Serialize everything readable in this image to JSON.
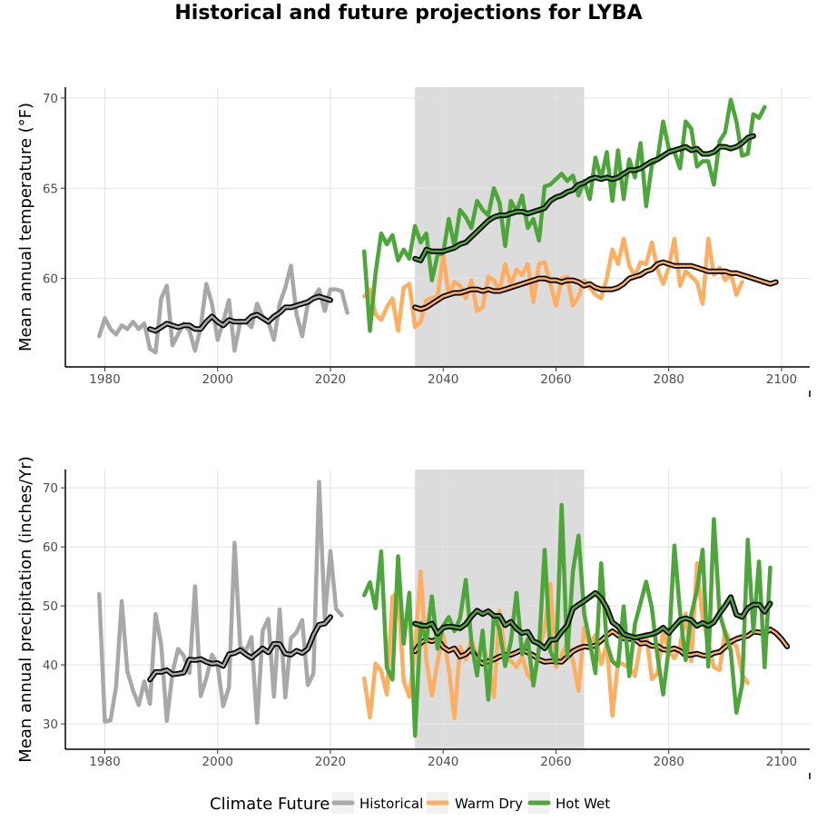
{
  "title": "Historical and future projections for LYBA",
  "legend": {
    "title": "Climate Future",
    "items": [
      {
        "label": "Historical",
        "color": "#a8a8a8"
      },
      {
        "label": "Warm Dry",
        "color": "#fdae61"
      },
      {
        "label": "Hot Wet",
        "color": "#4da63a"
      }
    ]
  },
  "chart_data": [
    {
      "type": "line",
      "ylabel": "Mean annual temperature (°F)",
      "xlim": [
        1973,
        2105
      ],
      "ylim": [
        55.1,
        70.6
      ],
      "xticks": [
        1980,
        2000,
        2020,
        2040,
        2060,
        2080,
        2100
      ],
      "yticks": [
        60,
        65,
        70
      ],
      "grid": true,
      "shaded_period": [
        2035,
        2065
      ],
      "series": [
        {
          "name": "Historical",
          "color": "#a8a8a8",
          "x_start": 1979,
          "values": [
            56.8,
            57.8,
            57.2,
            56.9,
            57.4,
            57.2,
            57.6,
            57.2,
            57.5,
            56.1,
            55.9,
            58.9,
            59.6,
            56.3,
            56.9,
            57.5,
            57.1,
            56.0,
            57.3,
            59.7,
            58.6,
            56.6,
            57.6,
            58.8,
            56.0,
            57.6,
            57.6,
            57.3,
            58.6,
            57.9,
            57.6,
            56.6,
            58.6,
            59.5,
            60.7,
            58.0,
            56.8,
            58.6,
            58.9,
            59.4,
            58.2,
            59.4,
            59.4,
            59.3,
            58.1
          ]
        },
        {
          "name": "Historical",
          "color": "#000000",
          "smooth": true,
          "x_start": 1988,
          "values": [
            57.2,
            57.1,
            57.3,
            57.5,
            57.4,
            57.3,
            57.4,
            57.4,
            57.2,
            57.2,
            57.6,
            57.9,
            57.6,
            57.4,
            57.7,
            57.6,
            57.6,
            57.6,
            57.9,
            58.0,
            57.8,
            57.6,
            57.9,
            58.1,
            58.4,
            58.4,
            58.5,
            58.6,
            58.7,
            58.9,
            59.0,
            58.9,
            58.8
          ]
        },
        {
          "name": "Warm Dry",
          "color": "#fdae61",
          "x_start": 2026,
          "values": [
            59.0,
            59.4,
            58.0,
            57.7,
            58.4,
            58.9,
            57.1,
            59.5,
            59.7,
            57.3,
            57.6,
            58.8,
            58.9,
            59.0,
            61.3,
            59.1,
            59.8,
            59.6,
            58.9,
            59.9,
            58.2,
            58.4,
            60.1,
            59.9,
            59.3,
            60.8,
            59.6,
            60.5,
            60.2,
            60.8,
            58.7,
            60.8,
            60.9,
            59.7,
            58.5,
            60.0,
            60.1,
            58.5,
            59.0,
            59.9,
            59.5,
            59.1,
            58.9,
            60.0,
            61.6,
            60.8,
            62.2,
            60.7,
            60.1,
            60.9,
            60.8,
            62.0,
            60.5,
            59.7,
            60.6,
            62.2,
            59.6,
            60.4,
            60.1,
            59.8,
            58.6,
            62.2,
            60.2,
            60.6,
            59.9,
            60.3,
            59.1,
            59.8
          ]
        },
        {
          "name": "Warm Dry",
          "color": "#000000",
          "smooth": true,
          "x_start": 2035,
          "values": [
            58.4,
            58.3,
            58.4,
            58.6,
            58.8,
            59.0,
            59.1,
            59.2,
            59.2,
            59.3,
            59.4,
            59.4,
            59.3,
            59.4,
            59.3,
            59.3,
            59.4,
            59.5,
            59.6,
            59.7,
            59.8,
            59.9,
            60.0,
            60.0,
            59.9,
            59.9,
            59.8,
            59.9,
            59.9,
            59.8,
            59.6,
            59.7,
            59.5,
            59.4,
            59.4,
            59.4,
            59.5,
            59.7,
            60.0,
            60.1,
            60.2,
            60.4,
            60.5,
            60.8,
            60.9,
            60.8,
            60.7,
            60.7,
            60.7,
            60.7,
            60.6,
            60.5,
            60.4,
            60.4,
            60.4,
            60.4,
            60.3,
            60.3,
            60.2,
            60.1,
            60.0,
            59.9,
            59.8,
            59.7,
            59.8
          ]
        },
        {
          "name": "Hot Wet",
          "color": "#4da63a",
          "x_start": 2026,
          "values": [
            61.5,
            57.1,
            60.3,
            62.5,
            61.9,
            62.4,
            61.0,
            61.6,
            61.1,
            62.9,
            62.0,
            62.5,
            59.9,
            61.3,
            61.4,
            63.3,
            61.8,
            63.8,
            63.4,
            62.8,
            64.3,
            63.8,
            63.5,
            65.0,
            64.2,
            61.8,
            64.3,
            63.7,
            64.6,
            62.8,
            63.3,
            62.1,
            65.1,
            65.2,
            65.5,
            65.8,
            65.4,
            65.7,
            64.6,
            65.4,
            64.4,
            66.7,
            65.5,
            67.0,
            64.3,
            67.1,
            64.4,
            66.6,
            65.6,
            67.5,
            64.0,
            66.3,
            66.6,
            68.7,
            67.2,
            67.0,
            66.1,
            68.7,
            68.3,
            66.2,
            66.5,
            66.5,
            65.2,
            67.6,
            68.1,
            69.9,
            68.7,
            66.8,
            66.9,
            69.1,
            68.9,
            69.5
          ]
        },
        {
          "name": "Hot Wet",
          "color": "#000000",
          "smooth": true,
          "x_start": 2035,
          "values": [
            61.1,
            61.0,
            61.6,
            61.5,
            61.5,
            61.5,
            61.6,
            61.7,
            61.9,
            62.0,
            62.3,
            62.6,
            62.9,
            63.2,
            63.4,
            63.5,
            63.5,
            63.6,
            63.7,
            63.7,
            63.6,
            63.7,
            63.8,
            63.9,
            64.3,
            64.5,
            64.6,
            64.8,
            64.9,
            65.2,
            65.3,
            65.5,
            65.6,
            65.5,
            65.6,
            65.5,
            65.6,
            65.8,
            66.0,
            66.0,
            66.1,
            66.3,
            66.5,
            66.6,
            66.8,
            67.0,
            67.1,
            67.2,
            67.3,
            67.1,
            67.2,
            66.9,
            66.9,
            67.0,
            67.3,
            67.3,
            67.2,
            67.3,
            67.5,
            67.8,
            67.9
          ]
        }
      ]
    },
    {
      "type": "line",
      "ylabel": "Mean annual precipitation (inches/Yr)",
      "xlim": [
        1973,
        2105
      ],
      "ylim": [
        25.7,
        73.1
      ],
      "xticks": [
        1980,
        2000,
        2020,
        2040,
        2060,
        2080,
        2100
      ],
      "yticks": [
        30,
        40,
        50,
        60,
        70
      ],
      "grid": true,
      "shaded_period": [
        2035,
        2065
      ],
      "series": [
        {
          "name": "Historical",
          "color": "#a8a8a8",
          "x_start": 1979,
          "values": [
            52.0,
            30.4,
            30.6,
            36.3,
            50.8,
            38.9,
            35.7,
            33.2,
            37.2,
            33.4,
            48.6,
            43.4,
            30.5,
            38.7,
            42.7,
            41.5,
            38.6,
            53.3,
            34.7,
            37.7,
            41.7,
            40.0,
            33.0,
            36.2,
            60.7,
            43.2,
            42.3,
            44.7,
            30.2,
            45.8,
            47.8,
            34.6,
            49.4,
            34.5,
            44.5,
            45.5,
            47.6,
            36.6,
            38.5,
            71.0,
            47.8,
            59.3,
            49.5,
            48.4
          ]
        },
        {
          "name": "Historical",
          "color": "#000000",
          "smooth": true,
          "x_start": 1988,
          "values": [
            37.5,
            38.8,
            38.8,
            39.1,
            38.4,
            38.5,
            38.7,
            40.9,
            40.8,
            41.0,
            40.5,
            40.2,
            40.3,
            39.8,
            41.8,
            42.0,
            42.5,
            41.8,
            41.2,
            42.0,
            42.8,
            42.1,
            43.6,
            43.5,
            41.9,
            41.7,
            42.4,
            42.0,
            42.7,
            45.1,
            46.8,
            47.0,
            48.1
          ]
        },
        {
          "name": "Warm Dry",
          "color": "#fdae61",
          "x_start": 2026,
          "values": [
            37.7,
            31.1,
            40.2,
            39.0,
            35.0,
            51.5,
            52.5,
            37.2,
            34.6,
            43.0,
            55.8,
            40.8,
            34.8,
            40.5,
            45.1,
            39.4,
            31.0,
            43.1,
            40.9,
            44.3,
            41.1,
            43.5,
            40.3,
            34.6,
            49.1,
            41.6,
            40.7,
            39.6,
            41.4,
            38.3,
            37.2,
            42.4,
            46.2,
            53.7,
            39.6,
            41.6,
            43.9,
            40.7,
            35.6,
            46.3,
            43.1,
            45.1,
            40.1,
            43.7,
            31.4,
            40.6,
            40.0,
            39.6,
            38.1,
            43.7,
            45.2,
            37.6,
            38.5,
            45.9,
            42.4,
            41.1,
            43.2,
            48.7,
            40.6,
            57.2,
            47.7,
            43.8,
            39.6,
            39.1,
            45.8,
            43.8,
            43.2,
            38.4,
            36.9
          ]
        },
        {
          "name": "Warm Dry",
          "color": "#000000",
          "smooth": true,
          "x_start": 2035,
          "values": [
            42.3,
            43.7,
            44.3,
            44.0,
            44.4,
            43.0,
            42.4,
            42.8,
            41.4,
            41.8,
            42.7,
            40.9,
            40.2,
            40.6,
            40.9,
            41.4,
            41.7,
            41.7,
            42.1,
            42.6,
            42.1,
            41.6,
            40.9,
            40.5,
            40.6,
            40.6,
            40.5,
            41.4,
            42.3,
            42.8,
            43.1,
            43.0,
            43.3,
            44.1,
            45.0,
            45.7,
            45.0,
            44.5,
            44.4,
            44.3,
            43.6,
            43.7,
            43.2,
            43.2,
            42.6,
            42.5,
            42.8,
            42.4,
            41.6,
            41.7,
            41.9,
            41.6,
            41.5,
            42.0,
            42.2,
            43.0,
            43.9,
            44.4,
            44.7,
            44.9,
            45.6,
            45.5,
            45.3,
            46.0,
            45.4,
            44.4,
            43.1
          ]
        },
        {
          "name": "Hot Wet",
          "color": "#4da63a",
          "x_start": 2026,
          "values": [
            51.8,
            54.0,
            49.6,
            59.2,
            39.5,
            37.5,
            58.4,
            43.6,
            52.2,
            28.0,
            47.1,
            44.0,
            51.6,
            42.7,
            46.6,
            48.1,
            45.7,
            47.9,
            54.4,
            43.9,
            38.2,
            45.8,
            34.1,
            48.5,
            45.9,
            39.8,
            44.0,
            52.2,
            41.8,
            44.4,
            36.5,
            42.9,
            59.5,
            42.3,
            40.3,
            67.1,
            41.4,
            55.8,
            61.9,
            48.7,
            43.9,
            38.6,
            57.2,
            43.6,
            40.6,
            39.8,
            49.9,
            38.1,
            46.9,
            50.5,
            54.1,
            49.6,
            41.5,
            35.0,
            42.8,
            60.2,
            49.0,
            40.8,
            48.5,
            52.7,
            59.5,
            39.7,
            64.7,
            48.8,
            45.4,
            42.4,
            31.9,
            36.6,
            61.2,
            45.6,
            57.5,
            39.6,
            56.5
          ]
        },
        {
          "name": "Hot Wet",
          "color": "#000000",
          "smooth": true,
          "x_start": 2035,
          "values": [
            47.0,
            46.7,
            46.6,
            47.0,
            45.3,
            46.3,
            46.5,
            46.4,
            46.2,
            46.9,
            48.2,
            49.2,
            48.6,
            49.1,
            48.3,
            48.3,
            46.7,
            47.3,
            46.1,
            45.4,
            45.6,
            44.0,
            43.6,
            42.8,
            44.2,
            44.3,
            45.6,
            46.7,
            49.5,
            50.2,
            50.8,
            51.5,
            52.2,
            51.3,
            49.7,
            47.2,
            46.5,
            45.2,
            44.9,
            44.6,
            44.8,
            45.0,
            45.2,
            45.6,
            46.3,
            45.4,
            46.5,
            47.6,
            47.9,
            47.6,
            46.6,
            47.1,
            46.6,
            47.2,
            48.7,
            50.0,
            51.5,
            48.5,
            48.1,
            49.6,
            50.2,
            50.2,
            49.0,
            50.4
          ]
        }
      ]
    }
  ]
}
